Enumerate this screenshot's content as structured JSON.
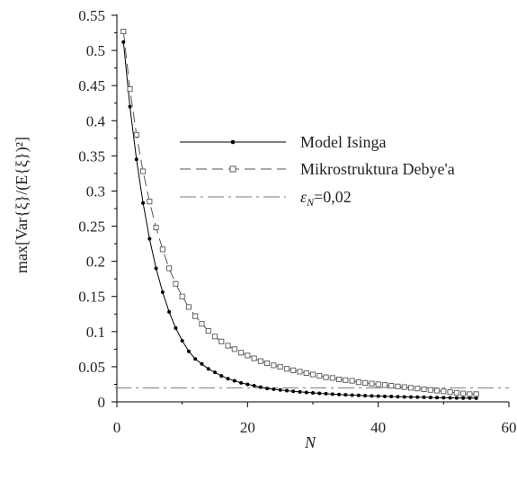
{
  "chart_data": {
    "type": "line",
    "xlabel": "N",
    "ylabel": "max[Var{ξ}/(E{ξ})²]",
    "xlim": [
      0,
      60
    ],
    "ylim": [
      0,
      0.55
    ],
    "x_ticks": [
      "0",
      "20",
      "40",
      "60"
    ],
    "y_ticks": [
      "0",
      "0.05",
      "0.1",
      "0.15",
      "0.2",
      "0.25",
      "0.3",
      "0.35",
      "0.4",
      "0.45",
      "0.5",
      "0.55"
    ],
    "grid": false,
    "legend_position": "center-right",
    "series": [
      {
        "name": "Model Isinga",
        "line_style": "solid",
        "marker": "filled-dot",
        "color": "#000000",
        "x": [
          1,
          2,
          3,
          4,
          5,
          6,
          7,
          8,
          9,
          10,
          11,
          12,
          13,
          14,
          15,
          16,
          17,
          18,
          19,
          20,
          21,
          22,
          23,
          24,
          25,
          26,
          27,
          28,
          29,
          30,
          31,
          32,
          33,
          34,
          35,
          36,
          37,
          38,
          39,
          40,
          41,
          42,
          43,
          44,
          45,
          46,
          47,
          48,
          49,
          50,
          51,
          52,
          53,
          54,
          55
        ],
        "values": [
          0.512,
          0.42,
          0.345,
          0.283,
          0.232,
          0.19,
          0.156,
          0.128,
          0.105,
          0.087,
          0.072,
          0.061,
          0.054,
          0.047,
          0.042,
          0.037,
          0.033,
          0.03,
          0.027,
          0.025,
          0.023,
          0.021,
          0.019,
          0.018,
          0.017,
          0.016,
          0.015,
          0.0142,
          0.0135,
          0.0128,
          0.0122,
          0.0116,
          0.011,
          0.0105,
          0.01,
          0.0096,
          0.0092,
          0.0088,
          0.0085,
          0.0082,
          0.0079,
          0.0076,
          0.0073,
          0.0071,
          0.0069,
          0.0067,
          0.0065,
          0.0063,
          0.0061,
          0.0059,
          0.0058,
          0.0056,
          0.0055,
          0.0054,
          0.0053
        ]
      },
      {
        "name": "Mikrostruktura Debye'a",
        "line_style": "dashed",
        "marker": "open-square",
        "color": "#555555",
        "x": [
          1,
          2,
          3,
          4,
          5,
          6,
          7,
          8,
          9,
          10,
          11,
          12,
          13,
          14,
          15,
          16,
          17,
          18,
          19,
          20,
          21,
          22,
          23,
          24,
          25,
          26,
          27,
          28,
          29,
          30,
          31,
          32,
          33,
          34,
          35,
          36,
          37,
          38,
          39,
          40,
          41,
          42,
          43,
          44,
          45,
          46,
          47,
          48,
          49,
          50,
          51,
          52,
          53,
          54,
          55
        ],
        "values": [
          0.527,
          0.445,
          0.38,
          0.328,
          0.285,
          0.248,
          0.217,
          0.19,
          0.168,
          0.15,
          0.135,
          0.122,
          0.111,
          0.101,
          0.093,
          0.086,
          0.08,
          0.075,
          0.07,
          0.066,
          0.062,
          0.058,
          0.055,
          0.052,
          0.05,
          0.047,
          0.045,
          0.043,
          0.041,
          0.039,
          0.037,
          0.035,
          0.034,
          0.032,
          0.031,
          0.03,
          0.028,
          0.027,
          0.026,
          0.025,
          0.024,
          0.023,
          0.022,
          0.021,
          0.02,
          0.019,
          0.018,
          0.017,
          0.016,
          0.015,
          0.014,
          0.013,
          0.012,
          0.011,
          0.011
        ]
      },
      {
        "name": "εN=0,02",
        "name_main": "ε",
        "name_sub": "N",
        "name_rest": "=0,02",
        "line_style": "dash-dot",
        "marker": "none",
        "color": "#777777",
        "x": [
          0,
          60
        ],
        "values": [
          0.02,
          0.02
        ]
      }
    ]
  }
}
